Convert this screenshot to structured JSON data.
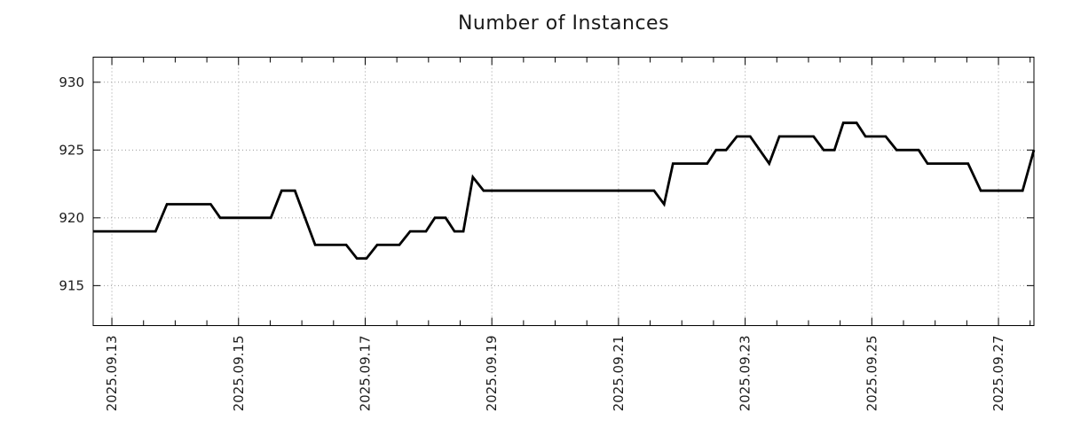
{
  "chart_data": {
    "type": "line",
    "title": "Number of Instances",
    "xlabel": "",
    "ylabel": "",
    "legend": false,
    "grid": true,
    "x_tick_labels": [
      "2025.09.13",
      "2025.09.15",
      "2025.09.17",
      "2025.09.19",
      "2025.09.21",
      "2025.09.23",
      "2025.09.25",
      "2025.09.27"
    ],
    "x_major_days": [
      0,
      2,
      4,
      6,
      8,
      10,
      12,
      14
    ],
    "x_minor_step_days": 0.5,
    "xlim_days": [
      -0.295,
      14.56
    ],
    "y_ticks": [
      915,
      920,
      925,
      930
    ],
    "ylim": [
      912.05,
      931.85
    ],
    "line_color": "#000000",
    "grid_color": "#9a9a9a",
    "axis_color": "#000000",
    "text_color": "#1c1c1c",
    "series": [
      {
        "name": "instances",
        "points_days_value": [
          [
            -0.29,
            919
          ],
          [
            0.69,
            919
          ],
          [
            0.87,
            921
          ],
          [
            1.56,
            921
          ],
          [
            1.71,
            920
          ],
          [
            2.51,
            920
          ],
          [
            2.68,
            922
          ],
          [
            2.89,
            922
          ],
          [
            3.21,
            918
          ],
          [
            3.7,
            918
          ],
          [
            3.87,
            917
          ],
          [
            4.02,
            917
          ],
          [
            4.19,
            918
          ],
          [
            4.54,
            918
          ],
          [
            4.71,
            919
          ],
          [
            4.96,
            919
          ],
          [
            5.1,
            920
          ],
          [
            5.27,
            920
          ],
          [
            5.41,
            919
          ],
          [
            5.55,
            919
          ],
          [
            5.7,
            923
          ],
          [
            5.87,
            922
          ],
          [
            8.56,
            922
          ],
          [
            8.72,
            921
          ],
          [
            8.86,
            924
          ],
          [
            9.4,
            924
          ],
          [
            9.54,
            925
          ],
          [
            9.7,
            925
          ],
          [
            9.87,
            926
          ],
          [
            10.08,
            926
          ],
          [
            10.38,
            924
          ],
          [
            10.54,
            926
          ],
          [
            11.08,
            926
          ],
          [
            11.24,
            925
          ],
          [
            11.41,
            925
          ],
          [
            11.55,
            927
          ],
          [
            11.76,
            927
          ],
          [
            11.9,
            926
          ],
          [
            12.22,
            926
          ],
          [
            12.39,
            925
          ],
          [
            12.74,
            925
          ],
          [
            12.88,
            924
          ],
          [
            13.52,
            924
          ],
          [
            13.72,
            922
          ],
          [
            14.38,
            922
          ],
          [
            14.56,
            925
          ]
        ]
      }
    ]
  }
}
